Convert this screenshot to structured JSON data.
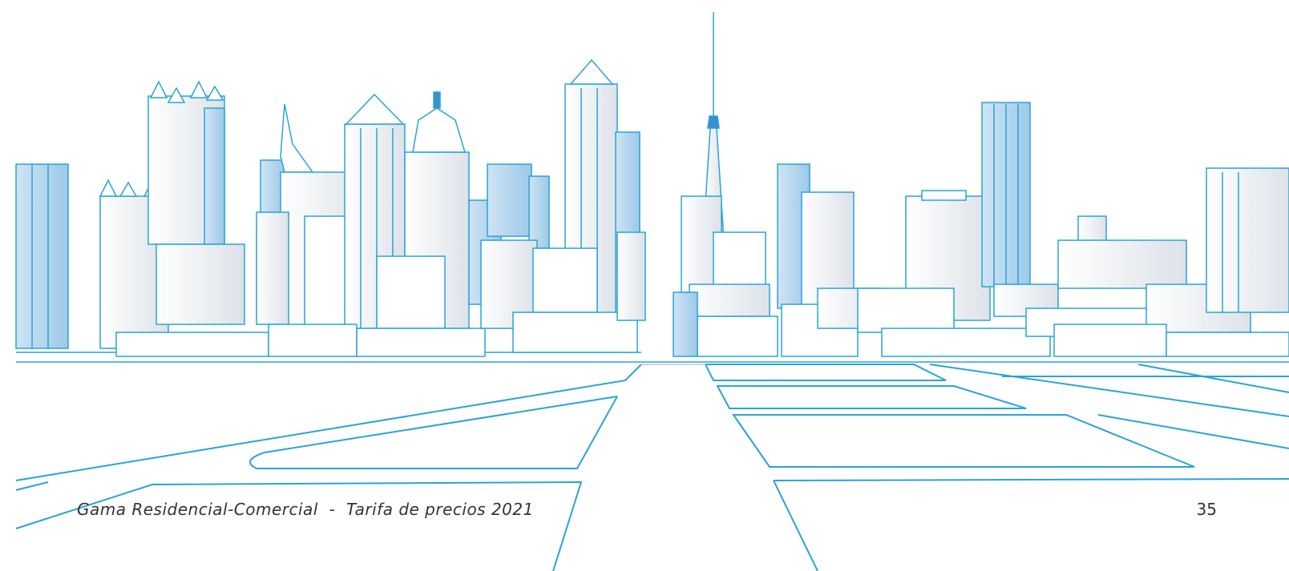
{
  "footer": {
    "title": "Gama Residencial-Comercial  -  Tarifa de precios 2021",
    "page_number": "35"
  },
  "illustration": {
    "subject": "city-skyline-wireframe",
    "line_color": "#2aa3d8",
    "shade_color": "#e6e9ee",
    "accent_color": "#3a8fd0"
  }
}
